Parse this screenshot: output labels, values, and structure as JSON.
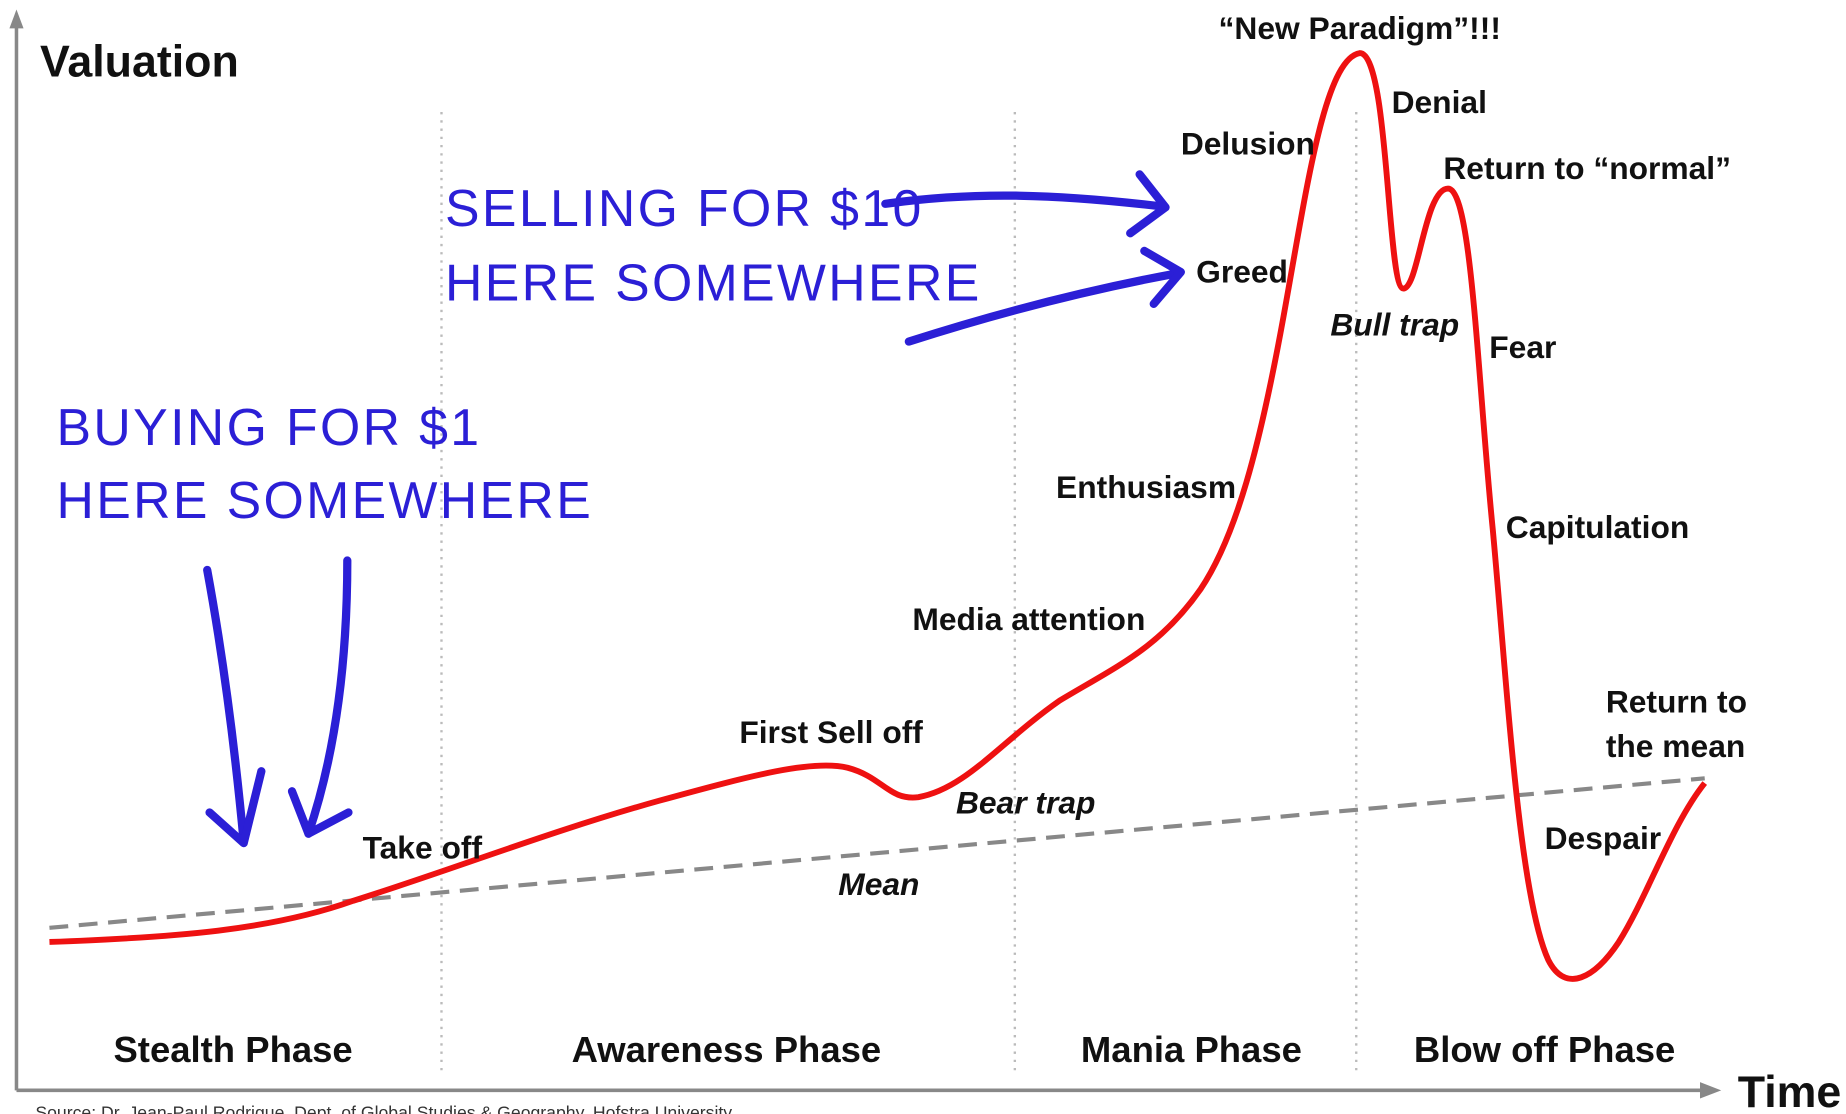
{
  "axes": {
    "y_label": "Valuation",
    "x_label": "Time"
  },
  "phases": [
    "Stealth Phase",
    "Awareness Phase",
    "Mania Phase",
    "Blow off Phase"
  ],
  "labels": {
    "new_paradigm": "“New Paradigm”!!!",
    "denial": "Denial",
    "delusion": "Delusion",
    "return_normal": "Return to “normal”",
    "greed": "Greed",
    "bull_trap": "Bull trap",
    "fear": "Fear",
    "enthusiasm": "Enthusiasm",
    "capitulation": "Capitulation",
    "media_attention": "Media attention",
    "first_sell_off": "First Sell off",
    "bear_trap": "Bear trap",
    "return_mean": [
      "Return to",
      "the mean"
    ],
    "take_off": "Take off",
    "mean": "Mean",
    "despair": "Despair"
  },
  "annotations": {
    "selling": [
      "SELLING FOR $10",
      "HERE SOMEWHERE"
    ],
    "buying": [
      "BUYING FOR $1",
      "HERE SOMEWHERE"
    ]
  },
  "source": "Source: Dr. Jean-Paul Rodrigue, Dept. of Global Studies & Geography, Hofstra University"
}
